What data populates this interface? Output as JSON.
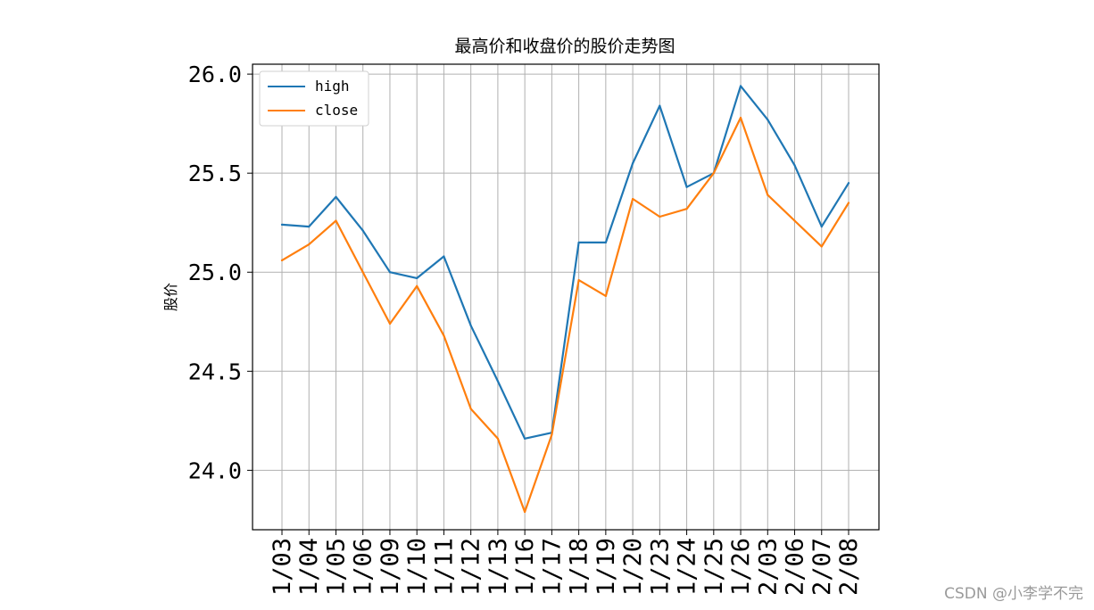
{
  "chart_data": {
    "type": "line",
    "title": "最高价和收盘价的股价走势图",
    "xlabel": "",
    "ylabel": "股价",
    "ylim": [
      23.7,
      26.05
    ],
    "yticks": [
      "24.0",
      "24.5",
      "25.0",
      "25.5",
      "26.0"
    ],
    "ytick_values": [
      24.0,
      24.5,
      25.0,
      25.5,
      26.0
    ],
    "grid": true,
    "legend_position": "top-left",
    "categories": [
      "1/03",
      "1/04",
      "1/05",
      "1/06",
      "1/09",
      "1/10",
      "1/11",
      "1/12",
      "1/13",
      "1/16",
      "1/17",
      "1/18",
      "1/19",
      "1/20",
      "1/23",
      "1/24",
      "1/25",
      "1/26",
      "2/03",
      "2/06",
      "2/07",
      "2/08"
    ],
    "series": [
      {
        "name": "high",
        "color": "#1f77b4",
        "values": [
          25.24,
          25.23,
          25.38,
          25.21,
          25.0,
          24.97,
          25.08,
          24.73,
          24.45,
          24.16,
          24.19,
          25.15,
          25.15,
          25.55,
          25.84,
          25.43,
          25.5,
          25.94,
          25.77,
          25.54,
          25.23,
          25.45
        ]
      },
      {
        "name": "close",
        "color": "#ff7f0e",
        "values": [
          25.06,
          25.14,
          25.26,
          25.0,
          24.74,
          24.93,
          24.68,
          24.31,
          24.16,
          23.79,
          24.18,
          24.96,
          24.88,
          25.37,
          25.28,
          25.32,
          25.5,
          25.78,
          25.39,
          25.26,
          25.13,
          25.35
        ]
      }
    ]
  },
  "watermark": "CSDN @小李学不完"
}
